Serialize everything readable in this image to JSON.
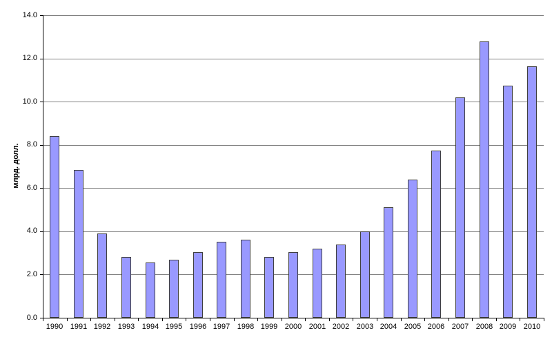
{
  "chart_data": {
    "type": "bar",
    "title": "",
    "xlabel": "",
    "ylabel": "млрд. долл.",
    "categories": [
      "1990",
      "1991",
      "1992",
      "1993",
      "1994",
      "1995",
      "1996",
      "1997",
      "1998",
      "1999",
      "2000",
      "2001",
      "2002",
      "2003",
      "2004",
      "2005",
      "2006",
      "2007",
      "2008",
      "2009",
      "2010"
    ],
    "values": [
      8.4,
      6.85,
      3.9,
      2.8,
      2.55,
      2.7,
      3.05,
      3.5,
      3.6,
      2.8,
      3.05,
      3.2,
      3.4,
      4.0,
      5.1,
      6.4,
      7.75,
      10.2,
      12.8,
      10.75,
      11.65
    ],
    "ylim": [
      0,
      14
    ],
    "ytick_step": 2,
    "ytick_labels": [
      "0.0",
      "2.0",
      "4.0",
      "6.0",
      "8.0",
      "10.0",
      "12.0",
      "14.0"
    ],
    "grid": true,
    "legend_position": "none",
    "bar_fill_color": "#9999FF",
    "bar_border_color": "#3f3f3f",
    "gridline_color": "#808080",
    "axis_color": "#000000",
    "background_color": "#FFFFFF"
  }
}
